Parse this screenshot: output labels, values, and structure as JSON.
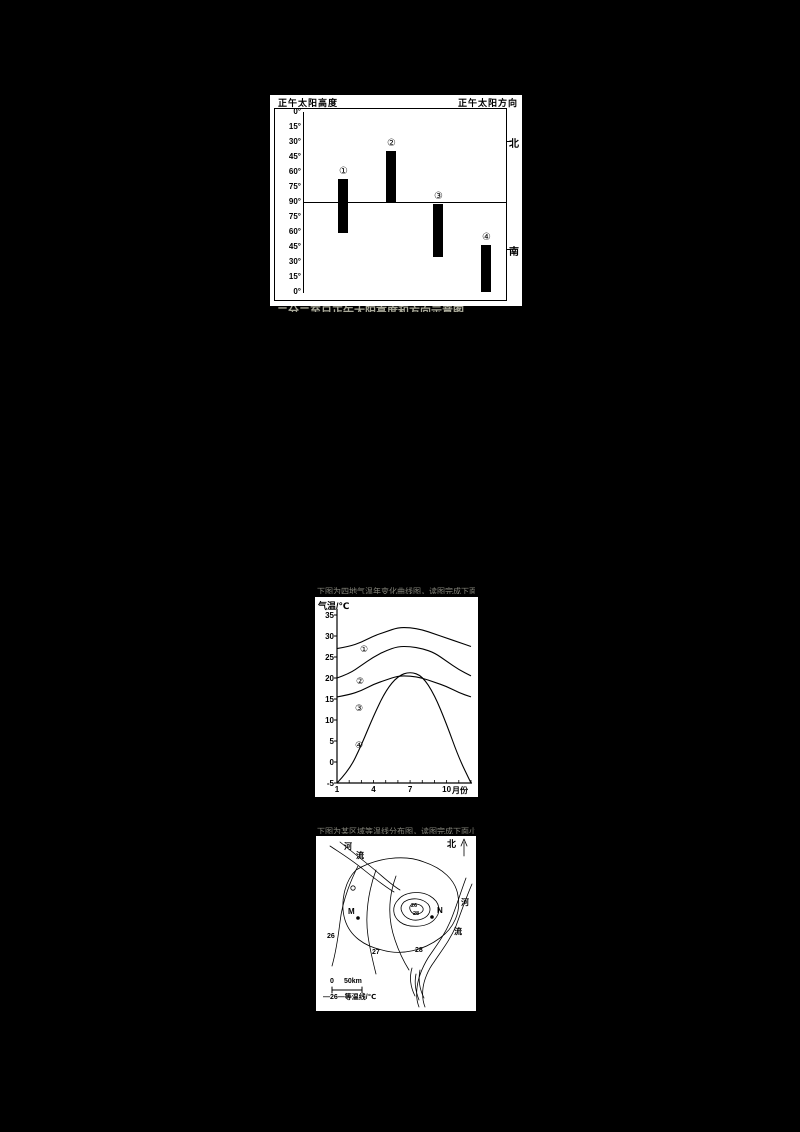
{
  "page": {
    "background": "#000000"
  },
  "fig1": {
    "title_left": "正午太阳高度",
    "title_right": "正午太阳方向",
    "dir_north": "北",
    "dir_south": "南",
    "caption_partial": "二分二至日正午太阳高度和方向示意图"
  },
  "fig2": {
    "caption_partial": "下图为四地气温年变化曲线图，读图完成下面小题。"
  },
  "fig3": {
    "north_label": "北",
    "river_top_left": [
      "河",
      "流"
    ],
    "river_right": [
      "河",
      "流"
    ],
    "isotherm_labels": [
      "26",
      "27",
      "28"
    ],
    "center_labels": [
      "26",
      "28"
    ],
    "point_m": "M",
    "point_n": "N",
    "scale_zero": "0",
    "scale_dist": "50km",
    "legend": "—26—等温线/℃",
    "caption_partial": "下图为某区域等温线分布图，读图完成下面小题。"
  },
  "chart_data": [
    {
      "type": "bar",
      "y_ticks": [
        "0°",
        "15°",
        "30°",
        "45°",
        "60°",
        "75°",
        "90°",
        "75°",
        "60°",
        "45°",
        "30°",
        "15°",
        "0°"
      ],
      "north_label": "北",
      "south_label": "南",
      "bars": [
        {
          "label": "①",
          "from_deg": 67,
          "to_deg": 121
        },
        {
          "label": "②",
          "from_deg": 39,
          "to_deg": 90
        },
        {
          "label": "③",
          "from_deg": 92,
          "to_deg": 145
        },
        {
          "label": "④",
          "from_deg": 133,
          "to_deg": 180
        }
      ]
    },
    {
      "type": "line",
      "ylabel": "气温/℃",
      "ylim": [
        -5,
        35
      ],
      "y_ticks": [
        35,
        30,
        25,
        20,
        15,
        10,
        5,
        0,
        -5
      ],
      "x": [
        1,
        2,
        3,
        4,
        5,
        6,
        7,
        8,
        9,
        10,
        11,
        12
      ],
      "x_ticks": [
        "1",
        "4",
        "7",
        "10"
      ],
      "x_unit": "月份",
      "series": [
        {
          "name": "①",
          "values": [
            27,
            27.5,
            28.5,
            30,
            31,
            32,
            32,
            31.5,
            30.5,
            29.5,
            28.5,
            27.5
          ]
        },
        {
          "name": "②",
          "values": [
            20,
            21,
            23,
            25,
            26.5,
            27.5,
            27.5,
            27,
            26,
            24,
            22,
            20.5
          ]
        },
        {
          "name": "③",
          "values": [
            15.5,
            16,
            17,
            18.5,
            19.5,
            20.5,
            20.5,
            20,
            19,
            18,
            16.5,
            15.5
          ]
        },
        {
          "name": "④",
          "values": [
            -5,
            -2,
            4,
            11,
            17,
            20.5,
            21.5,
            20.5,
            16,
            9,
            1,
            -5
          ]
        }
      ]
    }
  ]
}
